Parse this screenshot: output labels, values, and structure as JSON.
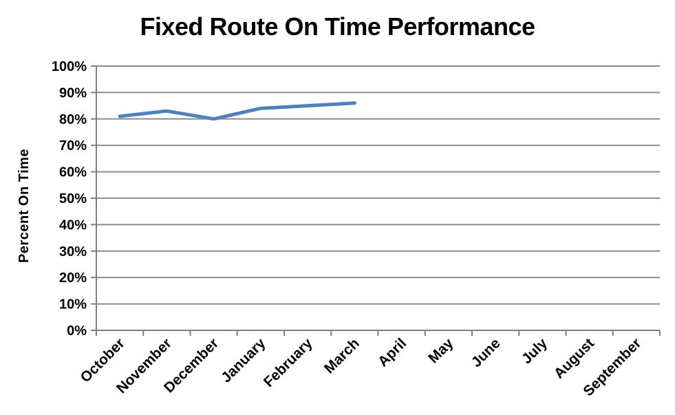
{
  "chart_data": {
    "type": "line",
    "title": "Fixed Route On Time Performance",
    "xlabel": "",
    "ylabel": "Percent On Time",
    "categories": [
      "October",
      "November",
      "December",
      "January",
      "February",
      "March",
      "April",
      "May",
      "June",
      "July",
      "August",
      "September"
    ],
    "values": [
      81,
      83,
      80,
      84,
      85,
      86,
      null,
      null,
      null,
      null,
      null,
      null
    ],
    "ylim": [
      0,
      100
    ],
    "ytick_step": 10,
    "ytick_labels": [
      "0%",
      "10%",
      "20%",
      "30%",
      "40%",
      "50%",
      "60%",
      "70%",
      "80%",
      "90%",
      "100%"
    ],
    "x_labels_rotation": 45,
    "grid": true,
    "legend": "none",
    "colors": {
      "line": "#4F81BD",
      "gridline": "#8C8C8C",
      "axis": "#7F7F7F",
      "text": "#000000",
      "background": "#FFFFFF"
    }
  }
}
